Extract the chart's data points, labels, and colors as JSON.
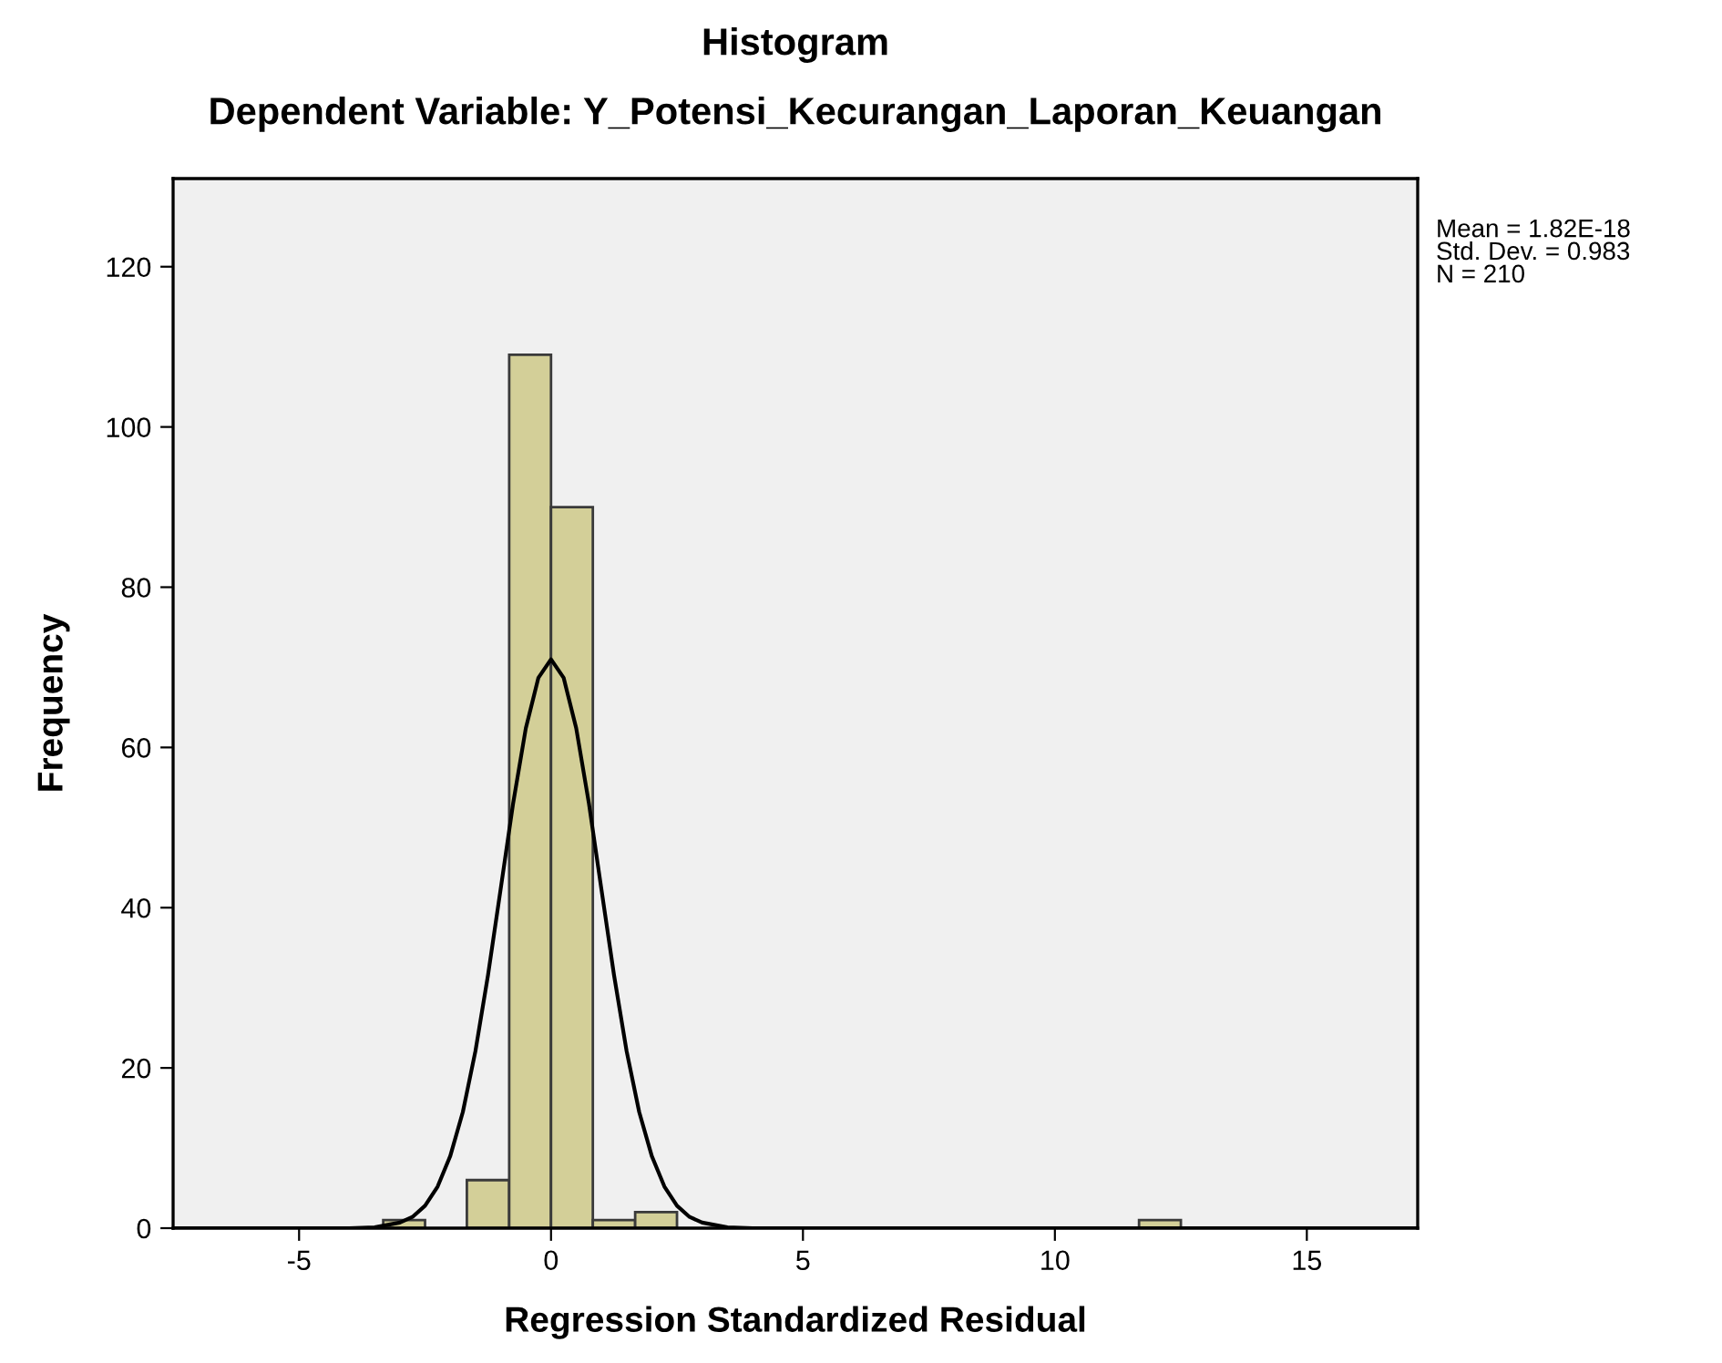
{
  "chart_data": {
    "type": "histogram",
    "title": "Histogram",
    "subtitle": "Dependent Variable: Y_Potensi_Kecurangan_Laporan_Keuangan",
    "xlabel": "Regression Standardized Residual",
    "ylabel": "Frequency",
    "annotations": [
      "Mean = 1.82E-18\nStd. Dev. = 0.983\nN = 210"
    ],
    "xlim": [
      -7.5,
      17.2
    ],
    "ylim": [
      0,
      131
    ],
    "xticks": [
      -5,
      0,
      5,
      10,
      15
    ],
    "yticks": [
      0,
      20,
      40,
      60,
      80,
      100,
      120
    ],
    "grid": false,
    "series": [
      {
        "type": "histogram",
        "color": "#d3cf98",
        "bins": [
          -3.33,
          -2.5,
          -1.67,
          -0.83,
          0,
          0.83,
          1.67,
          2.5
        ],
        "values": [
          1,
          0,
          6,
          109,
          90,
          1,
          2
        ]
      },
      {
        "color": "#d3cf98",
        "bins": [
          11.67,
          12.5
        ],
        "values": [
          1
        ]
      },
      {
        "type": "line",
        "color": "#000000",
        "x": [
          -7.5,
          -4,
          -3.5,
          -3,
          -2.75,
          -2.5,
          -2.25,
          -2,
          -1.75,
          -1.5,
          -1.25,
          -1,
          -0.75,
          -0.5,
          -0.25,
          0,
          0.25,
          0.5,
          0.75,
          1,
          1.25,
          1.5,
          1.75,
          2,
          2.25,
          2.5,
          2.75,
          3,
          3.5,
          4,
          17.2
        ],
        "values": [
          0,
          0,
          0.1,
          0.7,
          1.4,
          2.8,
          5.2,
          9,
          14.5,
          22.1,
          31.6,
          42.3,
          53.1,
          62.4,
          68.7,
          71,
          68.7,
          62.4,
          53.1,
          42.3,
          31.6,
          22.1,
          14.5,
          9,
          5.2,
          2.8,
          1.4,
          0.7,
          0.1,
          0,
          0
        ]
      }
    ]
  }
}
